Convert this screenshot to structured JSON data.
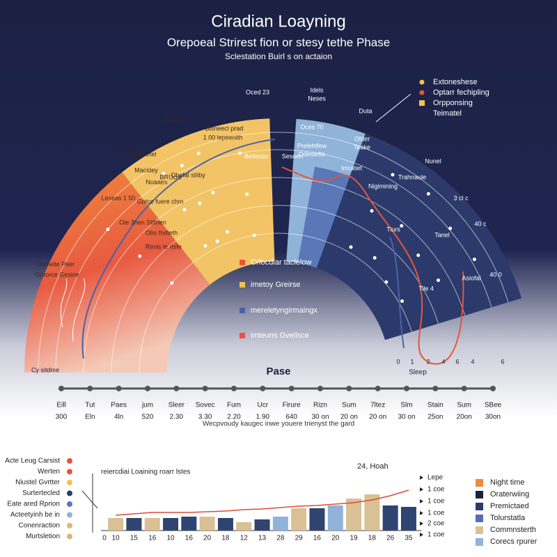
{
  "header": {
    "title": "Ciradian Loayning",
    "subtitle": "Orepoeal Strirest fion or stesy tethe Phase",
    "tagline": "Sclestation Buirl s on actaion"
  },
  "top_legend": [
    {
      "label": "Extoneshese",
      "color": "#f2c14e",
      "shape": "dot"
    },
    {
      "label": "Optarr fechipling",
      "color": "#e8543a",
      "shape": "dot"
    },
    {
      "label": "Orpponsing",
      "color": "#f2c14e",
      "shape": "square"
    },
    {
      "label": "Teimatel"
    }
  ],
  "diagram": {
    "labels": [
      "Oced 23",
      "19 40 01",
      "Bisneecl prad",
      "1 00 lepeenith",
      "0 1 1 30",
      "Deoletel",
      "Macidey",
      "Nuaaes",
      "Leseas 1 50",
      "BRUcnt",
      "Ohefal stiiby",
      "Gotce fuere chm",
      "Oie 3hen Stttnen",
      "Obs thdteth",
      "Rimis le rtsfe",
      "Ooewite Paer",
      "Oroorce Gesine",
      "Idels",
      "Neses",
      "Duta",
      "Oces 70",
      "Ofder",
      "Teake",
      "Prelehtfew",
      "Odeslefte",
      "Beilesao",
      "Sesoen",
      "Imratiet",
      "Nigimining",
      "Trahnaule",
      "Nunel",
      "3 cl c",
      "40 c",
      "Tiurs",
      "Tanel",
      "Tile 4",
      "Asiofal",
      "40 0"
    ],
    "inner_legend": [
      {
        "label": "Crfocdiar taclelow",
        "color": "#e8543a"
      },
      {
        "label": "imetoy Greirse",
        "color": "#f2c14e"
      },
      {
        "label": "mereletyngirmaingx",
        "color": "#4a62a8"
      },
      {
        "label": "imteuns Gvelisce",
        "color": "#e8543a"
      }
    ],
    "phase_label": "Pase",
    "corner_label": "Cy sitdme",
    "sleep_label": "Sleep",
    "sleep_axis": [
      0,
      1,
      2,
      4,
      6,
      4,
      6
    ]
  },
  "timeline": {
    "items": [
      {
        "name": "Eill",
        "value": "300"
      },
      {
        "name": "Tut",
        "value": "Eln"
      },
      {
        "name": "Paes",
        "value": "4ln"
      },
      {
        "name": "jum",
        "value": "520"
      },
      {
        "name": "Sleer",
        "value": "2.30"
      },
      {
        "name": "Sovec",
        "value": "3.30"
      },
      {
        "name": "Fum",
        "value": "2.20"
      },
      {
        "name": "Ucr",
        "value": "1.90"
      },
      {
        "name": "Firure",
        "value": "640"
      },
      {
        "name": "Rizn",
        "value": "30 on"
      },
      {
        "name": "Sum",
        "value": "20 on"
      },
      {
        "name": "7ltez",
        "value": "20 on"
      },
      {
        "name": "Slm",
        "value": "30 on"
      },
      {
        "name": "Stain",
        "value": "25on"
      },
      {
        "name": "Sum",
        "value": "20on"
      },
      {
        "name": "SBee",
        "value": "30on"
      }
    ],
    "caption": "Wecpvoudy kaugec inwe youere trienyst the gard"
  },
  "bottom_list": [
    {
      "label": "Acte Leug Carsist",
      "color": "#e8543a"
    },
    {
      "label": "Werten",
      "color": "#e8543a"
    },
    {
      "label": "Niustel Gvrtter",
      "color": "#f2c14e"
    },
    {
      "label": "Surtertecled",
      "color": "#2b3a6b"
    },
    {
      "label": "Eate ared Rprion",
      "color": "#5a78b8"
    },
    {
      "label": "Acteetyinh be in",
      "color": "#8fb3d9"
    },
    {
      "label": "Conenraction",
      "color": "#d9b77a"
    },
    {
      "label": "Murtsletion",
      "color": "#d9b77a"
    }
  ],
  "chart_data": {
    "type": "bar",
    "title": "reiercdiai Loaining roarr lstes",
    "annotation": "24, Hoah",
    "origin_label": "0",
    "categories": [
      "10",
      "15",
      "16",
      "10",
      "16",
      "20",
      "18",
      "12",
      "13",
      "28",
      "29",
      "16",
      "20",
      "19",
      "18",
      "26",
      "35"
    ],
    "values": [
      18,
      18,
      18,
      18,
      20,
      20,
      18,
      12,
      16,
      20,
      32,
      32,
      36,
      46,
      52,
      36,
      34
    ],
    "colors": [
      "#d9c095",
      "#2f4470",
      "#d9c095",
      "#2f4470",
      "#2f4470",
      "#d9c095",
      "#2f4470",
      "#d9c095",
      "#2f4470",
      "#8fb3d9",
      "#d9c095",
      "#2f4470",
      "#8fb3d9",
      "#d9c095",
      "#d9c095",
      "#2f4470",
      "#2f4470"
    ],
    "line": {
      "color": "#d94a3a",
      "values": [
        22,
        24,
        26,
        26,
        26,
        27,
        28,
        30,
        31,
        33,
        35,
        36,
        38,
        40,
        44,
        50,
        58
      ]
    },
    "ylim": [
      0,
      60
    ],
    "right_labels": [
      "Lepe",
      "1 coe",
      "1 coe",
      "1 coe",
      "2 coe",
      "1 coe"
    ]
  },
  "right_legend": [
    {
      "label": "Night time",
      "color": "#f08a3c"
    },
    {
      "label": "Oraterwiing",
      "color": "#1c2143"
    },
    {
      "label": "Premictaed",
      "color": "#2b3a6b"
    },
    {
      "label": "Tolurstatla",
      "color": "#5a6cb0"
    },
    {
      "label": "Commnsterth",
      "color": "#d9c095"
    },
    {
      "label": "Corecs rpurer",
      "color": "#8fb3d9"
    }
  ]
}
